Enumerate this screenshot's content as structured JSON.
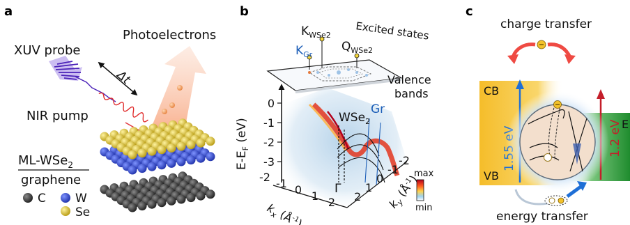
{
  "panels": {
    "a": {
      "label": "a",
      "xuv_probe": "XUV probe",
      "photoelectrons": "Photoelectrons",
      "delta_t": "Δt",
      "nir_pump": "NIR pump",
      "stack_top": "ML-WSe",
      "stack_top_sub": "2",
      "stack_bottom": "graphene",
      "legend": [
        {
          "symbol": "C",
          "color": "#3a3a3a"
        },
        {
          "symbol": "W",
          "color": "#3347c4"
        },
        {
          "symbol": "Se",
          "color": "#d8c33a"
        }
      ]
    },
    "b": {
      "label": "b",
      "k_wse2": "K",
      "k_wse2_sub": "WSe2",
      "k_gr": "K",
      "k_gr_sub": "Gr",
      "q_wse2": "Q",
      "q_wse2_sub": "WSe2",
      "excited_states": "Excited states",
      "valence": "Valence",
      "bands": "bands",
      "wse2_label": "WSe",
      "wse2_sub": "2",
      "gr_label": "Gr",
      "gamma": "Γ",
      "y_axis_label": "E-E",
      "y_axis_sub": "F",
      "y_axis_unit": " (eV)",
      "y_ticks": [
        "0",
        "-1",
        "-2",
        "-3"
      ],
      "kx_label": "k",
      "kx_sub": "x",
      "kx_unit": " (Å",
      "kx_ticks": [
        "-2",
        "-1",
        "0",
        "1",
        "2"
      ],
      "ky_label": "k",
      "ky_sub": "y",
      "ky_unit": " (Å",
      "ky_ticks": [
        "-2",
        "-1",
        "0",
        "1",
        "2"
      ],
      "inv_exp": "-1",
      "close_paren": ")",
      "colorbar_max": "max",
      "colorbar_min": "min"
    },
    "c": {
      "label": "c",
      "charge_transfer": "charge transfer",
      "energy_transfer": "energy transfer",
      "cb": "CB",
      "vb": "VB",
      "gap_wse2": "1.55 eV",
      "gap_right": "1.2 eV",
      "e_cut": "E",
      "colors": {
        "wse2_band": "#f6c53a",
        "right_band": "#2e9e3a",
        "arrow_blue": "#1f6fd6",
        "arrow_red": "#c41e2a"
      }
    }
  }
}
